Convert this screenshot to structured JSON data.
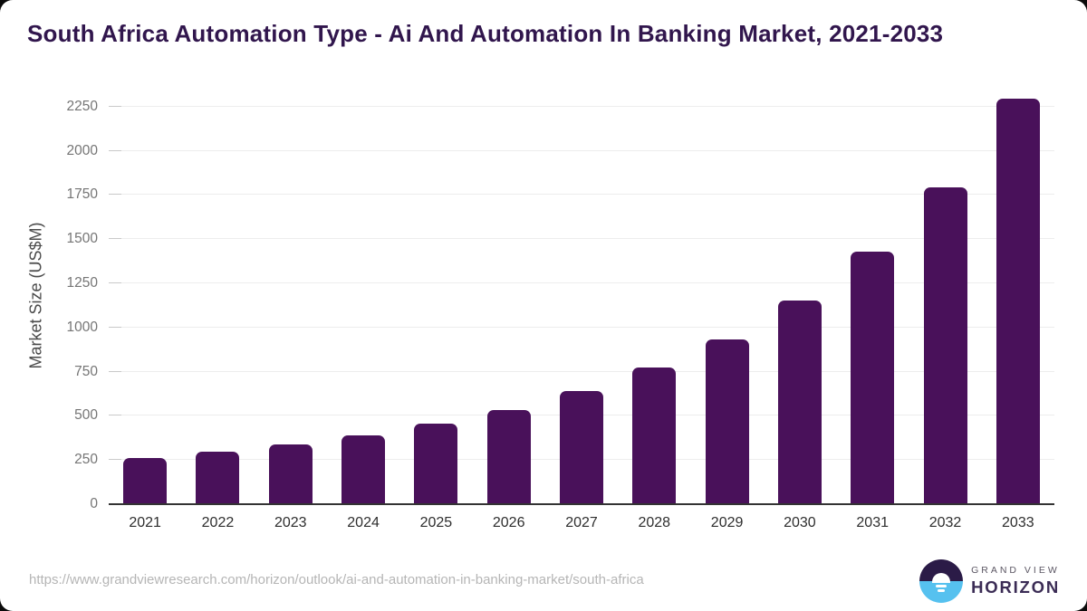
{
  "page": {
    "title": "South Africa Automation Type - Ai And Automation In Banking Market, 2021-2033",
    "footer_url": "https://www.grandviewresearch.com/horizon/outlook/ai-and-automation-in-banking-market/south-africa"
  },
  "brand": {
    "name_line1": "GRAND VIEW",
    "name_line2": "HORIZON",
    "logo_icon": "sun-over-horizon-icon"
  },
  "chart_data": {
    "type": "bar",
    "title": "South Africa Automation Type - Ai And Automation In Banking Market, 2021-2033",
    "categories": [
      "2021",
      "2022",
      "2023",
      "2024",
      "2025",
      "2026",
      "2027",
      "2028",
      "2029",
      "2030",
      "2031",
      "2032",
      "2033"
    ],
    "values": [
      262,
      297,
      339,
      391,
      458,
      535,
      639,
      773,
      931,
      1153,
      1428,
      1793,
      2293
    ],
    "xlabel": "",
    "ylabel": "Market Size (US$M)",
    "yticks": [
      0,
      250,
      500,
      750,
      1000,
      1250,
      1500,
      1750,
      2000,
      2250
    ],
    "ytick_interval": 250,
    "ylim": [
      0,
      2367
    ],
    "grid": true,
    "legend": false,
    "bar_color": "#49115A"
  },
  "colors": {
    "accent_purple": "#49115A",
    "title_text": "#31164D",
    "y_axis_text": "#757575",
    "x_axis_text": "#2E2E2E",
    "gridline": "#EDEDED",
    "axis_line": "#333333",
    "footer_text": "#B5B5B5",
    "logo_dark_half": "#2B1B47",
    "logo_blue_half": "#56C1EF",
    "logo_grand_view_text": "#5B5663",
    "logo_horizon_text": "#3B2C55"
  }
}
